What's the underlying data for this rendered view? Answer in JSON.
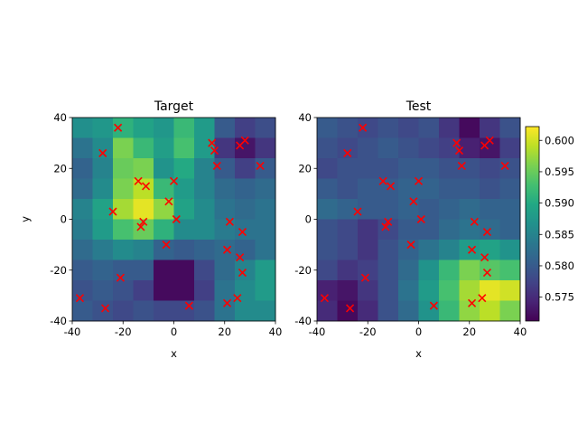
{
  "chart_data": [
    {
      "type": "heatmap",
      "title": "Target",
      "xlabel": "x",
      "ylabel": "y",
      "xlim": [
        -40,
        40
      ],
      "ylim": [
        -40,
        40
      ],
      "xticks": [
        -40,
        -20,
        0,
        20,
        40
      ],
      "yticks": [
        -40,
        -20,
        0,
        20,
        40
      ],
      "grid_x_edges": [
        -40,
        -32,
        -24,
        -16,
        -8,
        0,
        8,
        16,
        24,
        32,
        40
      ],
      "grid_y_edges": [
        -40,
        -32,
        -24,
        -16,
        -8,
        0,
        8,
        16,
        24,
        32,
        40
      ],
      "values": [
        [
          0.5865,
          0.5875,
          0.591,
          0.589,
          0.5875,
          0.592,
          0.588,
          0.58,
          0.577,
          0.5785
        ],
        [
          0.583,
          0.586,
          0.596,
          0.592,
          0.5885,
          0.593,
          0.588,
          0.576,
          0.573,
          0.576
        ],
        [
          0.581,
          0.585,
          0.595,
          0.596,
          0.587,
          0.59,
          0.585,
          0.58,
          0.577,
          0.58
        ],
        [
          0.582,
          0.586,
          0.596,
          0.599,
          0.592,
          0.588,
          0.585,
          0.582,
          0.581,
          0.582
        ],
        [
          0.585,
          0.589,
          0.598,
          0.601,
          0.597,
          0.589,
          0.586,
          0.583,
          0.582,
          0.583
        ],
        [
          0.584,
          0.588,
          0.593,
          0.595,
          0.591,
          0.586,
          0.586,
          0.584,
          0.583,
          0.583
        ],
        [
          0.582,
          0.584,
          0.586,
          0.585,
          0.581,
          0.58,
          0.581,
          0.582,
          0.581,
          0.583
        ],
        [
          0.58,
          0.581,
          0.58,
          0.58,
          0.572,
          0.572,
          0.578,
          0.582,
          0.585,
          0.588
        ],
        [
          0.579,
          0.58,
          0.579,
          0.577,
          0.572,
          0.572,
          0.577,
          0.583,
          0.586,
          0.588
        ],
        [
          0.58,
          0.579,
          0.578,
          0.579,
          0.578,
          0.578,
          0.579,
          0.583,
          0.586,
          0.586
        ]
      ],
      "points": [
        {
          "x": -22,
          "y": 36
        },
        {
          "x": -28,
          "y": 26
        },
        {
          "x": 15,
          "y": 30
        },
        {
          "x": 16,
          "y": 27
        },
        {
          "x": 26,
          "y": 29
        },
        {
          "x": 28,
          "y": 31
        },
        {
          "x": 17,
          "y": 21
        },
        {
          "x": 34,
          "y": 21
        },
        {
          "x": -14,
          "y": 15
        },
        {
          "x": -11,
          "y": 13
        },
        {
          "x": 0,
          "y": 15
        },
        {
          "x": -2,
          "y": 7
        },
        {
          "x": -24,
          "y": 3
        },
        {
          "x": -12,
          "y": -1
        },
        {
          "x": -13,
          "y": -3
        },
        {
          "x": 1,
          "y": 0
        },
        {
          "x": 22,
          "y": -1
        },
        {
          "x": 27,
          "y": -5
        },
        {
          "x": -3,
          "y": -10
        },
        {
          "x": 21,
          "y": -12
        },
        {
          "x": 26,
          "y": -15
        },
        {
          "x": 27,
          "y": -21
        },
        {
          "x": -21,
          "y": -23
        },
        {
          "x": -37,
          "y": -31
        },
        {
          "x": 25,
          "y": -31
        },
        {
          "x": 21,
          "y": -33
        },
        {
          "x": -27,
          "y": -35
        },
        {
          "x": 6,
          "y": -34
        }
      ]
    },
    {
      "type": "heatmap",
      "title": "Test",
      "xlabel": "x",
      "ylabel": "",
      "xlim": [
        -40,
        40
      ],
      "ylim": [
        -40,
        40
      ],
      "xticks": [
        -40,
        -20,
        0,
        20,
        40
      ],
      "yticks": [
        -40,
        -20,
        0,
        20,
        40
      ],
      "grid_x_edges": [
        -40,
        -32,
        -24,
        -16,
        -8,
        0,
        8,
        16,
        24,
        32,
        40
      ],
      "grid_y_edges": [
        -40,
        -32,
        -24,
        -16,
        -8,
        0,
        8,
        16,
        24,
        32,
        40
      ],
      "values": [
        [
          0.58,
          0.579,
          0.578,
          0.579,
          0.578,
          0.579,
          0.576,
          0.572,
          0.576,
          0.579
        ],
        [
          0.579,
          0.578,
          0.579,
          0.58,
          0.579,
          0.578,
          0.577,
          0.574,
          0.573,
          0.577
        ],
        [
          0.578,
          0.579,
          0.579,
          0.579,
          0.58,
          0.58,
          0.579,
          0.579,
          0.578,
          0.579
        ],
        [
          0.58,
          0.579,
          0.58,
          0.58,
          0.581,
          0.581,
          0.58,
          0.58,
          0.579,
          0.58
        ],
        [
          0.582,
          0.581,
          0.58,
          0.58,
          0.581,
          0.58,
          0.581,
          0.582,
          0.581,
          0.581
        ],
        [
          0.579,
          0.578,
          0.576,
          0.578,
          0.58,
          0.58,
          0.582,
          0.583,
          0.582,
          0.581
        ],
        [
          0.579,
          0.578,
          0.576,
          0.579,
          0.581,
          0.583,
          0.585,
          0.588,
          0.589,
          0.587
        ],
        [
          0.578,
          0.576,
          0.577,
          0.579,
          0.582,
          0.587,
          0.592,
          0.596,
          0.594,
          0.593
        ],
        [
          0.574,
          0.573,
          0.576,
          0.579,
          0.583,
          0.588,
          0.593,
          0.598,
          0.601,
          0.6
        ],
        [
          0.575,
          0.572,
          0.575,
          0.579,
          0.582,
          0.587,
          0.592,
          0.597,
          0.599,
          0.596
        ]
      ],
      "points": [
        {
          "x": -22,
          "y": 36
        },
        {
          "x": -28,
          "y": 26
        },
        {
          "x": 15,
          "y": 30
        },
        {
          "x": 16,
          "y": 27
        },
        {
          "x": 26,
          "y": 29
        },
        {
          "x": 28,
          "y": 31
        },
        {
          "x": 17,
          "y": 21
        },
        {
          "x": 34,
          "y": 21
        },
        {
          "x": -14,
          "y": 15
        },
        {
          "x": -11,
          "y": 13
        },
        {
          "x": 0,
          "y": 15
        },
        {
          "x": -2,
          "y": 7
        },
        {
          "x": -24,
          "y": 3
        },
        {
          "x": -12,
          "y": -1
        },
        {
          "x": -13,
          "y": -3
        },
        {
          "x": 1,
          "y": 0
        },
        {
          "x": 22,
          "y": -1
        },
        {
          "x": 27,
          "y": -5
        },
        {
          "x": -3,
          "y": -10
        },
        {
          "x": 21,
          "y": -12
        },
        {
          "x": 26,
          "y": -15
        },
        {
          "x": 27,
          "y": -21
        },
        {
          "x": -21,
          "y": -23
        },
        {
          "x": -37,
          "y": -31
        },
        {
          "x": 25,
          "y": -31
        },
        {
          "x": 21,
          "y": -33
        },
        {
          "x": -27,
          "y": -35
        },
        {
          "x": 6,
          "y": -34
        }
      ]
    }
  ],
  "colorbar": {
    "colormap": "viridis",
    "vmin": 0.5712,
    "vmax": 0.6022,
    "ticks": [
      0.575,
      0.58,
      0.585,
      0.59,
      0.595,
      0.6
    ],
    "tick_labels": [
      "0.575",
      "0.580",
      "0.585",
      "0.590",
      "0.595",
      "0.600"
    ]
  },
  "marker_color": "#ff0000"
}
